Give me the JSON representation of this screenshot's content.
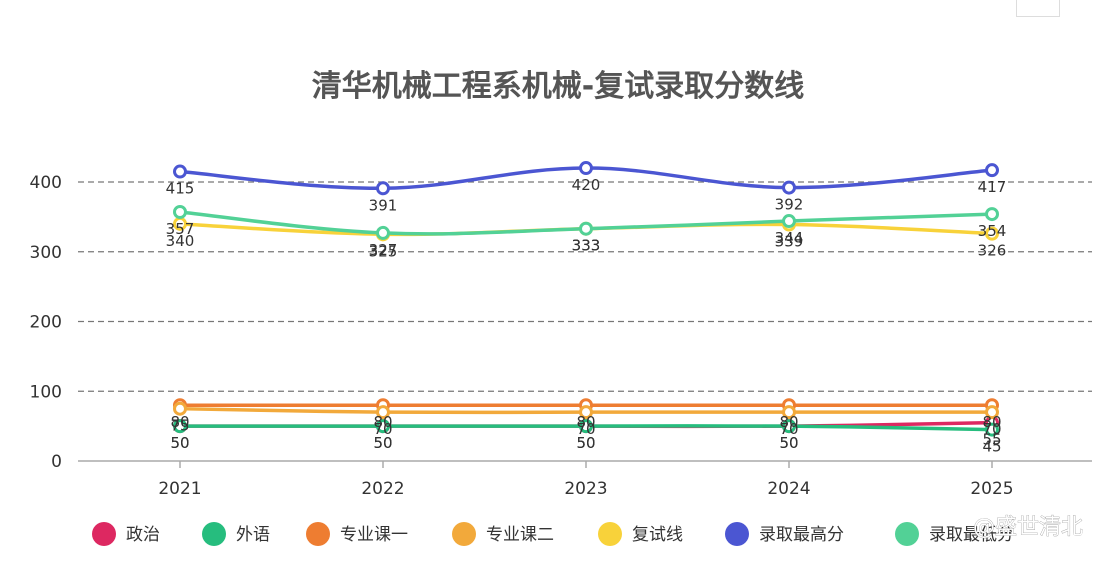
{
  "chart_data": {
    "type": "line",
    "title": "清华机械工程系机械-复试录取分数线",
    "categories": [
      "2021",
      "2022",
      "2023",
      "2024",
      "2025"
    ],
    "ylim": [
      0,
      450
    ],
    "yticks": [
      0,
      100,
      200,
      300,
      400
    ],
    "grid": "horizontal-dashed",
    "legend_position": "bottom",
    "series": [
      {
        "name": "政治",
        "color": "#dd2861",
        "values": [
          50,
          50,
          50,
          50,
          55
        ],
        "labels": [
          "50",
          "50",
          "50",
          "50",
          "55"
        ]
      },
      {
        "name": "外语",
        "color": "#26bd7e",
        "values": [
          50,
          50,
          50,
          50,
          45
        ],
        "labels": [
          "50",
          "50",
          "50",
          "50",
          "45"
        ]
      },
      {
        "name": "专业课一",
        "color": "#ee7d31",
        "values": [
          80,
          80,
          80,
          80,
          80
        ],
        "labels": [
          "80",
          "80",
          "80",
          "80",
          "80"
        ]
      },
      {
        "name": "专业课二",
        "color": "#f2a93b",
        "values": [
          75,
          70,
          70,
          70,
          70
        ],
        "labels": [
          "75",
          "70",
          "70",
          "70",
          "70"
        ]
      },
      {
        "name": "复试线",
        "color": "#f8d23a",
        "values": [
          340,
          325,
          333,
          339,
          326
        ],
        "labels": [
          "340",
          "325",
          "333",
          "339",
          "326"
        ]
      },
      {
        "name": "录取最高分",
        "color": "#4b56d2",
        "values": [
          415,
          391,
          420,
          392,
          417
        ],
        "labels": [
          "415",
          "391",
          "420",
          "392",
          "417"
        ]
      },
      {
        "name": "录取最低分",
        "color": "#52d196",
        "values": [
          357,
          327,
          333,
          344,
          354
        ],
        "labels": [
          "357",
          "327",
          "333",
          "344",
          "354"
        ]
      }
    ]
  },
  "watermark": "@盛世清北"
}
